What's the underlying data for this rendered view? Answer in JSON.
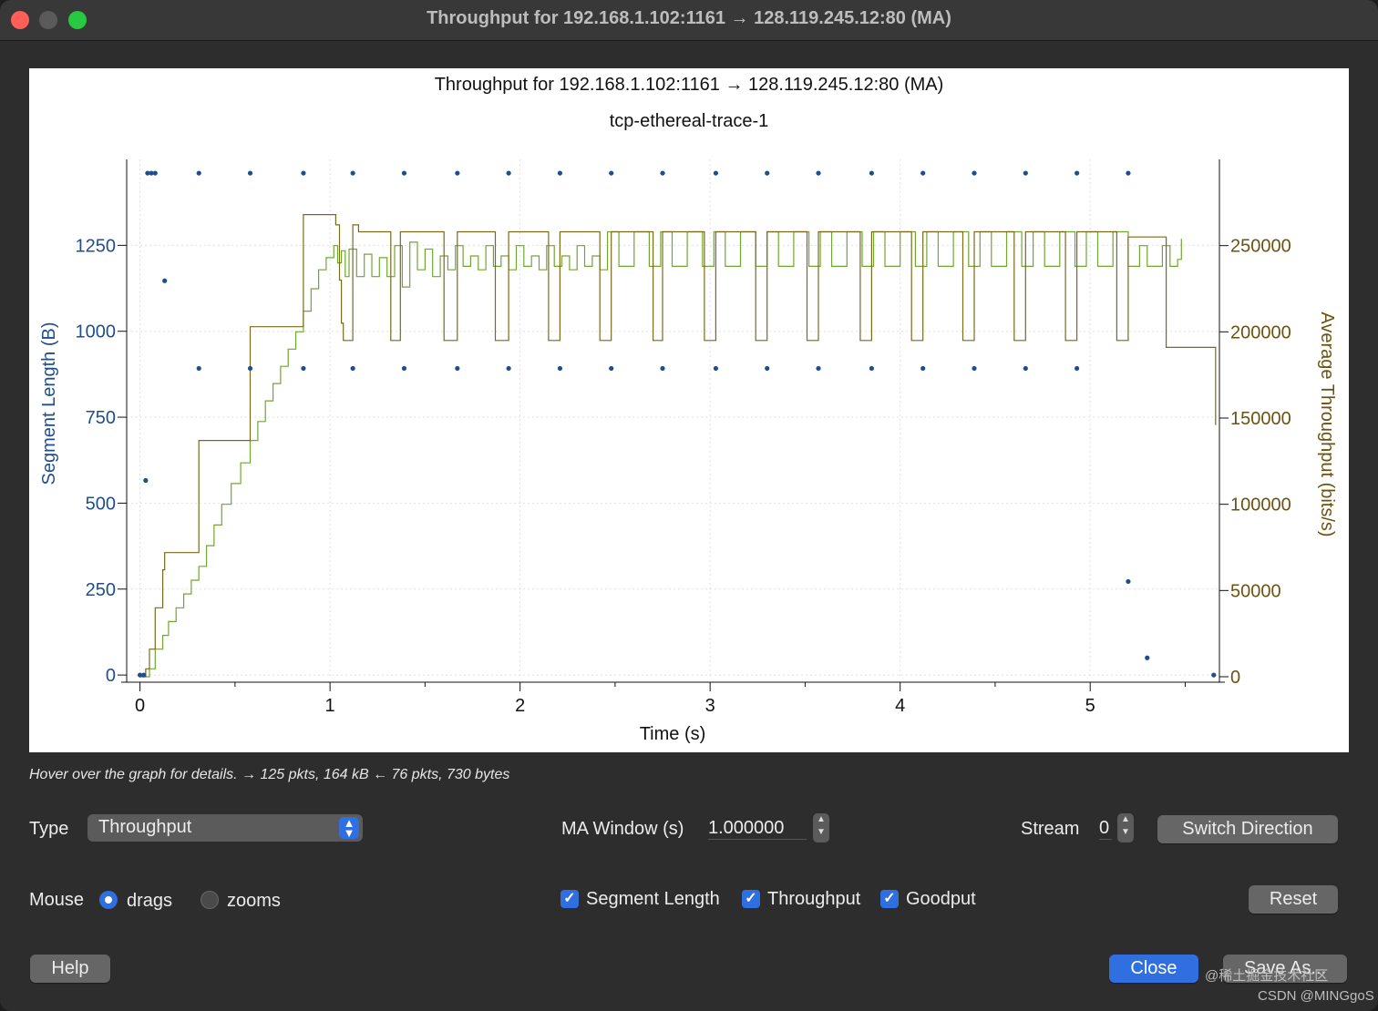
{
  "window": {
    "title": "Throughput for 192.168.1.102:1161 → 128.119.245.12:80 (MA)",
    "traffic_lights": [
      "#ff5f57",
      "#5a5a5a",
      "#28c840"
    ]
  },
  "chart_data": {
    "type": "line",
    "title": "Throughput for 192.168.1.102:1161 → 128.119.245.12:80 (MA)",
    "subtitle": "tcp-ethereal-trace-1",
    "xlabel": "Time (s)",
    "ylabel_left": "Segment Length (B)",
    "ylabel_right": "Average Throughput (bits/s)",
    "xlim": [
      -0.07,
      5.68
    ],
    "ylim_left": [
      -5,
      1500
    ],
    "ylim_right": [
      0,
      300000
    ],
    "x_ticks": [
      0,
      1,
      2,
      3,
      4,
      5
    ],
    "y_ticks_left": [
      0,
      250,
      500,
      750,
      1000,
      1250
    ],
    "y_ticks_right": [
      0,
      50000,
      100000,
      150000,
      200000,
      250000
    ],
    "colors": {
      "segment": "#1f4e8c",
      "throughput": "#7a6a1a",
      "goodput": "#6ea832",
      "axis_left": "#1f4e8c",
      "axis_right": "#6b5210"
    },
    "series": [
      {
        "name": "Segment Length",
        "kind": "scatter",
        "points": [
          [
            0.0,
            0
          ],
          [
            0.02,
            0
          ],
          [
            0.03,
            566
          ],
          [
            0.04,
            1460
          ],
          [
            0.06,
            1460
          ],
          [
            0.08,
            1460
          ],
          [
            0.13,
            1147
          ],
          [
            0.31,
            1460
          ],
          [
            0.31,
            892
          ],
          [
            0.58,
            1460
          ],
          [
            0.58,
            892
          ],
          [
            0.86,
            1460
          ],
          [
            0.86,
            892
          ],
          [
            1.12,
            1460
          ],
          [
            1.12,
            892
          ],
          [
            1.39,
            1460
          ],
          [
            1.39,
            892
          ],
          [
            1.67,
            1460
          ],
          [
            1.67,
            892
          ],
          [
            1.94,
            1460
          ],
          [
            1.94,
            892
          ],
          [
            2.21,
            1460
          ],
          [
            2.21,
            892
          ],
          [
            2.48,
            1460
          ],
          [
            2.48,
            892
          ],
          [
            2.75,
            1460
          ],
          [
            2.75,
            892
          ],
          [
            3.03,
            1460
          ],
          [
            3.03,
            892
          ],
          [
            3.3,
            1460
          ],
          [
            3.3,
            892
          ],
          [
            3.57,
            1460
          ],
          [
            3.57,
            892
          ],
          [
            3.85,
            1460
          ],
          [
            3.85,
            892
          ],
          [
            4.12,
            1460
          ],
          [
            4.12,
            892
          ],
          [
            4.39,
            1460
          ],
          [
            4.39,
            892
          ],
          [
            4.66,
            1460
          ],
          [
            4.66,
            892
          ],
          [
            4.93,
            1460
          ],
          [
            4.93,
            892
          ],
          [
            5.2,
            1460
          ],
          [
            5.2,
            272
          ],
          [
            5.3,
            50
          ],
          [
            5.65,
            0
          ]
        ]
      },
      {
        "name": "Throughput",
        "kind": "step",
        "points": [
          [
            0.0,
            0
          ],
          [
            0.03,
            4600
          ],
          [
            0.05,
            16000
          ],
          [
            0.08,
            40000
          ],
          [
            0.12,
            62000
          ],
          [
            0.13,
            72000
          ],
          [
            0.31,
            72000
          ],
          [
            0.31,
            137000
          ],
          [
            0.58,
            137000
          ],
          [
            0.58,
            203000
          ],
          [
            0.86,
            203000
          ],
          [
            0.86,
            268000
          ],
          [
            1.0,
            268000
          ],
          [
            1.03,
            262000
          ],
          [
            1.05,
            230000
          ],
          [
            1.06,
            205000
          ],
          [
            1.07,
            195000
          ],
          [
            1.12,
            195000
          ],
          [
            1.12,
            262000
          ],
          [
            1.15,
            262000
          ],
          [
            1.15,
            258000
          ],
          [
            1.3,
            258000
          ],
          [
            1.32,
            195000
          ],
          [
            1.35,
            195000
          ],
          [
            1.37,
            258000
          ],
          [
            1.58,
            258000
          ],
          [
            1.6,
            195000
          ],
          [
            1.65,
            195000
          ],
          [
            1.67,
            258000
          ],
          [
            1.85,
            258000
          ],
          [
            1.87,
            195000
          ],
          [
            1.92,
            195000
          ],
          [
            1.94,
            258000
          ],
          [
            2.13,
            258000
          ],
          [
            2.15,
            195000
          ],
          [
            2.19,
            195000
          ],
          [
            2.21,
            258000
          ],
          [
            2.4,
            258000
          ],
          [
            2.42,
            195000
          ],
          [
            2.46,
            195000
          ],
          [
            2.48,
            258000
          ],
          [
            2.68,
            258000
          ],
          [
            2.7,
            195000
          ],
          [
            2.73,
            195000
          ],
          [
            2.75,
            258000
          ],
          [
            2.95,
            258000
          ],
          [
            2.97,
            195000
          ],
          [
            3.01,
            195000
          ],
          [
            3.03,
            258000
          ],
          [
            3.22,
            258000
          ],
          [
            3.24,
            195000
          ],
          [
            3.28,
            195000
          ],
          [
            3.3,
            258000
          ],
          [
            3.49,
            258000
          ],
          [
            3.51,
            195000
          ],
          [
            3.55,
            195000
          ],
          [
            3.57,
            258000
          ],
          [
            3.77,
            258000
          ],
          [
            3.79,
            195000
          ],
          [
            3.83,
            195000
          ],
          [
            3.85,
            258000
          ],
          [
            4.04,
            258000
          ],
          [
            4.06,
            195000
          ],
          [
            4.1,
            195000
          ],
          [
            4.12,
            258000
          ],
          [
            4.31,
            258000
          ],
          [
            4.33,
            195000
          ],
          [
            4.37,
            195000
          ],
          [
            4.39,
            258000
          ],
          [
            4.58,
            258000
          ],
          [
            4.6,
            195000
          ],
          [
            4.64,
            195000
          ],
          [
            4.66,
            258000
          ],
          [
            4.85,
            258000
          ],
          [
            4.87,
            195000
          ],
          [
            4.91,
            195000
          ],
          [
            4.93,
            258000
          ],
          [
            5.12,
            258000
          ],
          [
            5.14,
            195000
          ],
          [
            5.18,
            195000
          ],
          [
            5.2,
            255000
          ],
          [
            5.4,
            255000
          ],
          [
            5.4,
            191000
          ],
          [
            5.66,
            191000
          ],
          [
            5.66,
            146000
          ]
        ]
      },
      {
        "name": "Goodput",
        "kind": "step",
        "points": [
          [
            0.03,
            0
          ],
          [
            0.05,
            4600
          ],
          [
            0.08,
            16000
          ],
          [
            0.12,
            24000
          ],
          [
            0.15,
            32000
          ],
          [
            0.19,
            40000
          ],
          [
            0.23,
            48000
          ],
          [
            0.27,
            56000
          ],
          [
            0.31,
            64000
          ],
          [
            0.35,
            76000
          ],
          [
            0.39,
            88000
          ],
          [
            0.43,
            100000
          ],
          [
            0.48,
            112000
          ],
          [
            0.53,
            124000
          ],
          [
            0.58,
            137000
          ],
          [
            0.62,
            148000
          ],
          [
            0.66,
            160000
          ],
          [
            0.7,
            170000
          ],
          [
            0.74,
            180000
          ],
          [
            0.78,
            190000
          ],
          [
            0.82,
            200000
          ],
          [
            0.86,
            212000
          ],
          [
            0.9,
            225000
          ],
          [
            0.94,
            236000
          ],
          [
            0.98,
            243000
          ],
          [
            1.02,
            250000
          ],
          [
            1.04,
            240000
          ],
          [
            1.06,
            247000
          ],
          [
            1.08,
            232000
          ],
          [
            1.1,
            248000
          ],
          [
            1.14,
            232000
          ],
          [
            1.18,
            245000
          ],
          [
            1.22,
            232000
          ],
          [
            1.26,
            243000
          ],
          [
            1.3,
            232000
          ],
          [
            1.34,
            250000
          ],
          [
            1.38,
            226000
          ],
          [
            1.42,
            252000
          ],
          [
            1.46,
            236000
          ],
          [
            1.5,
            248000
          ],
          [
            1.54,
            232000
          ],
          [
            1.58,
            244000
          ],
          [
            1.62,
            236000
          ],
          [
            1.66,
            250000
          ],
          [
            1.7,
            238000
          ],
          [
            1.74,
            244000
          ],
          [
            1.78,
            236000
          ],
          [
            1.82,
            250000
          ],
          [
            1.86,
            238000
          ],
          [
            1.9,
            244000
          ],
          [
            1.94,
            236000
          ],
          [
            1.98,
            250000
          ],
          [
            2.02,
            238000
          ],
          [
            2.06,
            244000
          ],
          [
            2.1,
            236000
          ],
          [
            2.14,
            250000
          ],
          [
            2.18,
            238000
          ],
          [
            2.22,
            244000
          ],
          [
            2.26,
            236000
          ],
          [
            2.3,
            250000
          ],
          [
            2.34,
            238000
          ],
          [
            2.38,
            244000
          ],
          [
            2.42,
            236000
          ],
          [
            2.46,
            258000
          ],
          [
            2.52,
            238000
          ],
          [
            2.6,
            258000
          ],
          [
            2.68,
            238000
          ],
          [
            2.74,
            258000
          ],
          [
            2.8,
            238000
          ],
          [
            2.88,
            258000
          ],
          [
            2.96,
            238000
          ],
          [
            3.02,
            258000
          ],
          [
            3.08,
            238000
          ],
          [
            3.16,
            258000
          ],
          [
            3.24,
            238000
          ],
          [
            3.3,
            258000
          ],
          [
            3.36,
            238000
          ],
          [
            3.44,
            258000
          ],
          [
            3.52,
            238000
          ],
          [
            3.58,
            258000
          ],
          [
            3.64,
            238000
          ],
          [
            3.72,
            258000
          ],
          [
            3.8,
            238000
          ],
          [
            3.86,
            258000
          ],
          [
            3.92,
            238000
          ],
          [
            4.0,
            258000
          ],
          [
            4.08,
            238000
          ],
          [
            4.14,
            258000
          ],
          [
            4.2,
            238000
          ],
          [
            4.28,
            258000
          ],
          [
            4.36,
            238000
          ],
          [
            4.42,
            258000
          ],
          [
            4.48,
            238000
          ],
          [
            4.56,
            258000
          ],
          [
            4.64,
            238000
          ],
          [
            4.7,
            258000
          ],
          [
            4.76,
            238000
          ],
          [
            4.84,
            258000
          ],
          [
            4.92,
            238000
          ],
          [
            4.98,
            258000
          ],
          [
            5.04,
            238000
          ],
          [
            5.12,
            258000
          ],
          [
            5.2,
            238000
          ],
          [
            5.26,
            250000
          ],
          [
            5.3,
            238000
          ],
          [
            5.38,
            250000
          ],
          [
            5.42,
            238000
          ],
          [
            5.46,
            242000
          ],
          [
            5.48,
            254000
          ]
        ]
      }
    ]
  },
  "hint": "Hover over the graph for details. → 125 pkts, 164 kB ← 76 pkts, 730 bytes",
  "controls": {
    "type_label": "Type",
    "type_value": "Throughput",
    "ma_label": "MA Window (s)",
    "ma_value": "1.000000",
    "stream_label": "Stream",
    "stream_value": "0",
    "switch_direction": "Switch Direction",
    "mouse_label": "Mouse",
    "drags": "drags",
    "zooms": "zooms",
    "segment_length": "Segment Length",
    "throughput": "Throughput",
    "goodput": "Goodput",
    "reset": "Reset",
    "help": "Help",
    "close": "Close",
    "save_as": "Save As..."
  },
  "watermark": {
    "line1": "@稀土掘金技术社区",
    "line2": "CSDN @MINGgoS"
  }
}
